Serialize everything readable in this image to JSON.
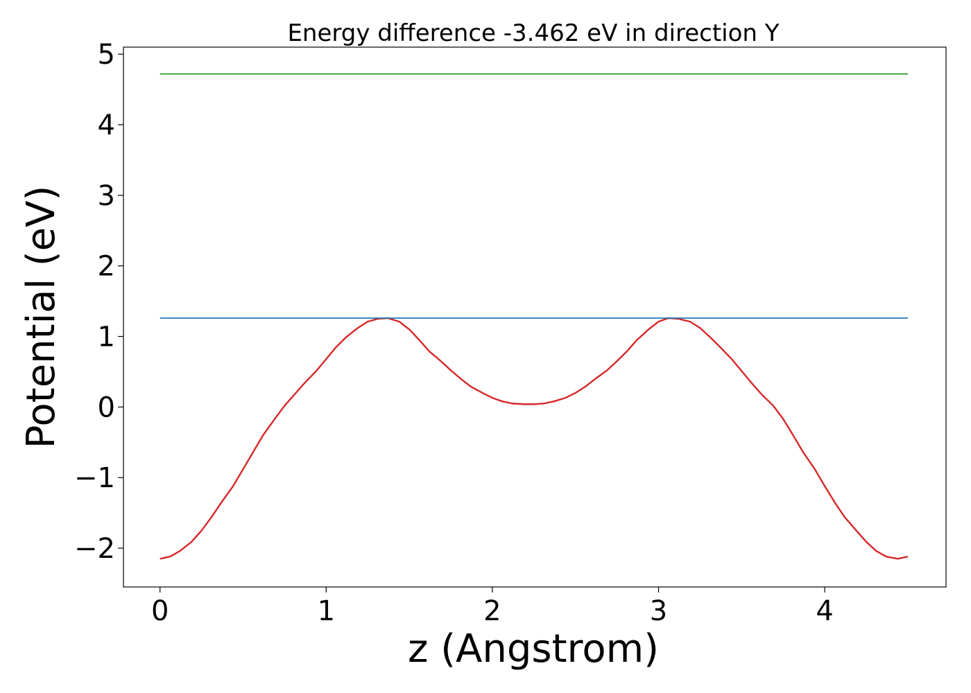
{
  "chart_data": {
    "type": "line",
    "title": "Energy difference -3.462 eV in direction Y",
    "xlabel": "z (Angstrom)",
    "ylabel": "Potential (eV)",
    "xlim": [
      -0.22,
      4.73
    ],
    "ylim": [
      -2.55,
      5.1
    ],
    "xticks": [
      0,
      1,
      2,
      3,
      4
    ],
    "yticks": [
      -2,
      -1,
      0,
      1,
      2,
      3,
      4,
      5
    ],
    "xtick_labels": [
      "0",
      "1",
      "2",
      "3",
      "4"
    ],
    "ytick_labels": [
      "−2",
      "−1",
      "0",
      "1",
      "2",
      "3",
      "4",
      "5"
    ],
    "grid": false,
    "series": [
      {
        "color": "#d62728",
        "x": [
          0,
          0.06,
          0.12,
          0.19,
          0.25,
          0.31,
          0.37,
          0.44,
          0.5,
          0.56,
          0.62,
          0.69,
          0.75,
          0.81,
          0.87,
          0.94,
          1.0,
          1.06,
          1.12,
          1.19,
          1.25,
          1.31,
          1.37,
          1.44,
          1.5,
          1.56,
          1.62,
          1.69,
          1.75,
          1.81,
          1.87,
          1.94,
          2.0,
          2.06,
          2.12,
          2.19,
          2.25,
          2.31,
          2.37,
          2.44,
          2.5,
          2.56,
          2.62,
          2.69,
          2.75,
          2.81,
          2.87,
          2.94,
          3.0,
          3.06,
          3.12,
          3.19,
          3.25,
          3.31,
          3.37,
          3.44,
          3.5,
          3.56,
          3.62,
          3.69,
          3.75,
          3.81,
          3.87,
          3.94,
          4.0,
          4.06,
          4.12,
          4.19,
          4.25,
          4.31,
          4.37,
          4.44,
          4.5
        ],
        "y": [
          -2.15,
          -2.12,
          -2.04,
          -1.91,
          -1.75,
          -1.56,
          -1.35,
          -1.12,
          -0.88,
          -0.64,
          -0.4,
          -0.17,
          0.02,
          0.18,
          0.34,
          0.51,
          0.68,
          0.85,
          0.99,
          1.12,
          1.21,
          1.25,
          1.26,
          1.21,
          1.1,
          0.95,
          0.79,
          0.65,
          0.52,
          0.4,
          0.29,
          0.2,
          0.13,
          0.08,
          0.05,
          0.04,
          0.04,
          0.05,
          0.08,
          0.13,
          0.2,
          0.29,
          0.4,
          0.52,
          0.65,
          0.79,
          0.95,
          1.1,
          1.21,
          1.26,
          1.25,
          1.21,
          1.12,
          0.99,
          0.85,
          0.68,
          0.51,
          0.34,
          0.18,
          0.02,
          -0.17,
          -0.4,
          -0.64,
          -0.88,
          -1.12,
          -1.35,
          -1.56,
          -1.75,
          -1.91,
          -2.04,
          -2.12,
          -2.15,
          -2.12
        ]
      },
      {
        "color": "#1f77b4",
        "x": [
          0,
          4.5
        ],
        "y": [
          1.26,
          1.26
        ]
      },
      {
        "color": "#2ca02c",
        "x": [
          0,
          4.5
        ],
        "y": [
          4.72,
          4.72
        ]
      }
    ]
  }
}
